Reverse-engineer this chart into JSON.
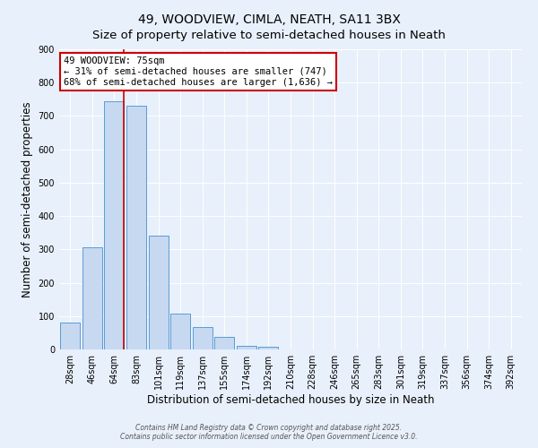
{
  "title": "49, WOODVIEW, CIMLA, NEATH, SA11 3BX",
  "subtitle": "Size of property relative to semi-detached houses in Neath",
  "xlabel": "Distribution of semi-detached houses by size in Neath",
  "ylabel": "Number of semi-detached properties",
  "bar_labels": [
    "28sqm",
    "46sqm",
    "64sqm",
    "83sqm",
    "101sqm",
    "119sqm",
    "137sqm",
    "155sqm",
    "174sqm",
    "192sqm",
    "210sqm",
    "228sqm",
    "246sqm",
    "265sqm",
    "283sqm",
    "301sqm",
    "319sqm",
    "337sqm",
    "356sqm",
    "374sqm",
    "392sqm"
  ],
  "bar_values": [
    80,
    307,
    743,
    730,
    340,
    108,
    68,
    38,
    12,
    7,
    0,
    0,
    0,
    0,
    0,
    0,
    0,
    0,
    0,
    0,
    0
  ],
  "bar_color": "#c6d9f1",
  "bar_edge_color": "#5b9bd5",
  "marker_color": "#cc0000",
  "annotation_title": "49 WOODVIEW: 75sqm",
  "annotation_line1": "← 31% of semi-detached houses are smaller (747)",
  "annotation_line2": "68% of semi-detached houses are larger (1,636) →",
  "annotation_box_color": "#ffffff",
  "annotation_box_edge": "#cc0000",
  "ylim": [
    0,
    900
  ],
  "yticks": [
    0,
    100,
    200,
    300,
    400,
    500,
    600,
    700,
    800,
    900
  ],
  "background_color": "#e8f0fb",
  "footer_line1": "Contains HM Land Registry data © Crown copyright and database right 2025.",
  "footer_line2": "Contains public sector information licensed under the Open Government Licence v3.0.",
  "title_fontsize": 10,
  "axis_label_fontsize": 8.5,
  "tick_fontsize": 7,
  "annotation_fontsize": 7.5,
  "footer_fontsize": 5.5
}
